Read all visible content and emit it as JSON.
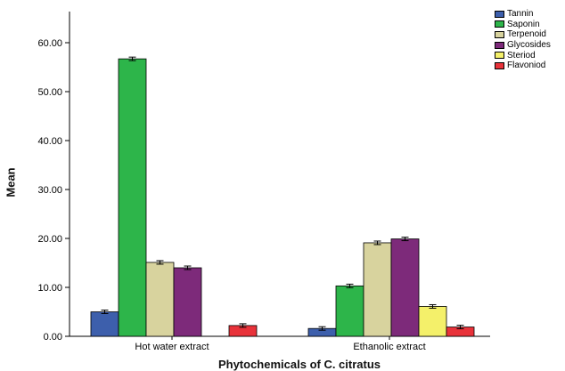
{
  "chart_data": {
    "type": "bar",
    "xlabel": "Phytochemicals of C. citratus",
    "ylabel": "Mean",
    "ylim": [
      0,
      65
    ],
    "yticks": [
      "0.00",
      "10.00",
      "20.00",
      "30.00",
      "40.00",
      "50.00",
      "60.00"
    ],
    "error_bars": true,
    "grid": false,
    "legend_position": "top-right",
    "categories": [
      "Hot water extract",
      "Ethanolic extract"
    ],
    "series": [
      {
        "name": "Tannin",
        "color": "#3d5fac",
        "values": [
          5.0,
          1.6
        ]
      },
      {
        "name": "Saponin",
        "color": "#2db54a",
        "values": [
          56.7,
          10.3
        ]
      },
      {
        "name": "Terpenoid",
        "color": "#d8d39e",
        "values": [
          15.1,
          19.1
        ]
      },
      {
        "name": "Glycosides",
        "color": "#7d2a7a",
        "values": [
          14.0,
          19.9
        ]
      },
      {
        "name": "Steriod",
        "color": "#f4f06a",
        "values": [
          null,
          6.1
        ]
      },
      {
        "name": "Flavoniod",
        "color": "#e8323a",
        "values": [
          2.2,
          1.9
        ]
      }
    ]
  }
}
